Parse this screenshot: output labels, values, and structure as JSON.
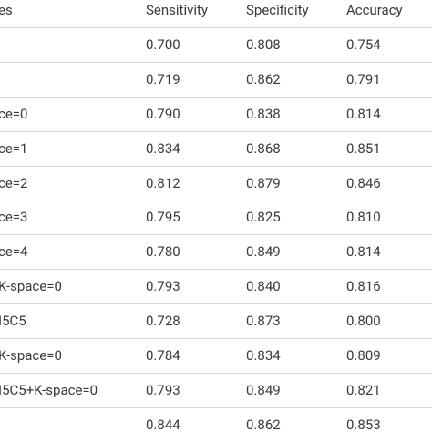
{
  "table": {
    "header": [
      "es",
      "Sensitivity",
      "Specificity",
      "Accuracy"
    ],
    "rows": [
      [
        null,
        "0.700",
        "0.808",
        "0.754"
      ],
      [
        null,
        "0.719",
        "0.862",
        "0.791"
      ],
      [
        "ce=0",
        "0.790",
        "0.838",
        "0.814"
      ],
      [
        "ce=1",
        "0.834",
        "0.868",
        "0.851"
      ],
      [
        "ce=2",
        "0.812",
        "0.879",
        "0.846"
      ],
      [
        "ce=3",
        "0.795",
        "0.825",
        "0.810"
      ],
      [
        "ce=4",
        "0.780",
        "0.849",
        "0.814"
      ],
      [
        "K-space=0",
        "0.793",
        "0.840",
        "0.816"
      ],
      [
        "I5C5",
        "0.728",
        "0.873",
        "0.800"
      ],
      [
        "K-space=0",
        "0.784",
        "0.834",
        "0.809"
      ],
      [
        "I5C5+K-space=0",
        "0.793",
        "0.849",
        "0.821"
      ],
      [
        null,
        "0.844",
        "0.862",
        "0.853"
      ]
    ]
  }
}
